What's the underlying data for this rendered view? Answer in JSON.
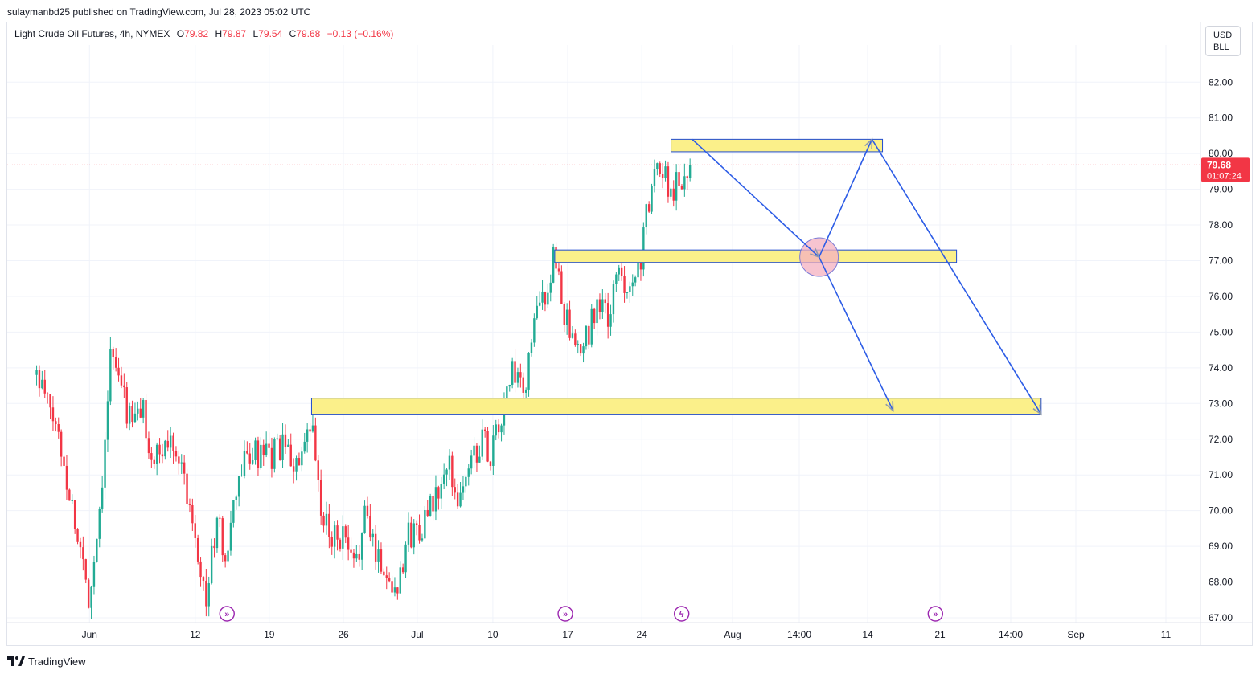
{
  "header": {
    "published": "sulaymanbd25 published on TradingView.com, Jul 28, 2023 05:02 UTC"
  },
  "legend": {
    "title": "Light Crude Oil Futures, 4h, NYMEX",
    "o_label": "O",
    "o_value": "79.82",
    "h_label": "H",
    "h_value": "79.87",
    "l_label": "L",
    "l_value": "79.54",
    "c_label": "C",
    "c_value": "79.68",
    "change": "−0.13 (−0.16%)"
  },
  "currency": {
    "line1": "USD",
    "line2": "BLL"
  },
  "price_tag": {
    "price": "79.68",
    "countdown": "01:07:24"
  },
  "footer": {
    "brand": "TradingView"
  },
  "colors": {
    "up": "#22ab94",
    "down": "#f23645",
    "zone_fill": "#fbf08a",
    "zone_border": "#1e4ad1",
    "arrow": "#2c5ce6",
    "circle": "#f4b0c0",
    "event_icon": "#9c27b0",
    "grid": "#f0f3fa"
  },
  "chart_data": {
    "type": "candlestick",
    "symbol": "Light Crude Oil Futures",
    "timeframe": "4h",
    "exchange": "NYMEX",
    "last_price": 79.68,
    "yaxis": {
      "ticks": [
        "67.00",
        "68.00",
        "69.00",
        "70.00",
        "71.00",
        "72.00",
        "73.00",
        "74.00",
        "75.00",
        "76.00",
        "77.00",
        "78.00",
        "79.00",
        "80.00",
        "81.00",
        "82.00"
      ],
      "ylim": [
        66.8,
        83.0
      ]
    },
    "xaxis": {
      "ticks": [
        "Jun",
        "12",
        "19",
        "26",
        "Jul",
        "10",
        "17",
        "24",
        "Aug",
        "14:00",
        "14",
        "21",
        "14:00",
        "Sep",
        "11"
      ]
    },
    "price_path": [
      [
        "May 27",
        73.8
      ],
      [
        "May 29",
        72.2
      ],
      [
        "May 31",
        69.1
      ],
      [
        "Jun 1",
        67.5
      ],
      [
        "Jun 2",
        70.2
      ],
      [
        "Jun 3",
        74.4
      ],
      [
        "Jun 5",
        72.4
      ],
      [
        "Jun 6",
        72.9
      ],
      [
        "Jun 7",
        71.3
      ],
      [
        "Jun 9",
        72.1
      ],
      [
        "Jun 11",
        69.5
      ],
      [
        "Jun 12",
        67.4
      ],
      [
        "Jun 13",
        69.7
      ],
      [
        "Jun 14",
        68.6
      ],
      [
        "Jun 15",
        70.8
      ],
      [
        "Jun 16",
        71.6
      ],
      [
        "Jun 18",
        71.4
      ],
      [
        "Jun 19",
        71.8
      ],
      [
        "Jun 21",
        71.2
      ],
      [
        "Jun 22",
        72.4
      ],
      [
        "Jun 23",
        69.6
      ],
      [
        "Jun 25",
        69.2
      ],
      [
        "Jun 26",
        68.3
      ],
      [
        "Jun 27",
        69.8
      ],
      [
        "Jun 29",
        68.2
      ],
      [
        "Jun 30",
        67.8
      ],
      [
        "Jul 1",
        69.2
      ],
      [
        "Jul 3",
        69.8
      ],
      [
        "Jul 4",
        70.5
      ],
      [
        "Jul 5",
        71.2
      ],
      [
        "Jul 6",
        70.3
      ],
      [
        "Jul 7",
        71.3
      ],
      [
        "Jul 8",
        72.0
      ],
      [
        "Jul 9",
        71.6
      ],
      [
        "Jul 10",
        72.6
      ],
      [
        "Jul 11",
        73.9
      ],
      [
        "Jul 12",
        73.1
      ],
      [
        "Jul 13",
        75.2
      ],
      [
        "Jul 14",
        76.0
      ],
      [
        "Jul 15",
        77.1
      ],
      [
        "Jul 16",
        75.4
      ],
      [
        "Jul 17",
        74.2
      ],
      [
        "Jul 18",
        74.8
      ],
      [
        "Jul 19",
        75.9
      ],
      [
        "Jul 20",
        75.3
      ],
      [
        "Jul 21",
        76.6
      ],
      [
        "Jul 22",
        76.4
      ],
      [
        "Jul 23",
        76.9
      ],
      [
        "Jul 24",
        78.8
      ],
      [
        "Jul 25",
        79.8
      ],
      [
        "Jul 26",
        78.9
      ],
      [
        "Jul 27",
        79.4
      ],
      [
        "Jul 28",
        79.68
      ]
    ],
    "zones": [
      {
        "from": "Jul 26",
        "to": "Aug 15",
        "top": 80.4,
        "bottom": 80.05
      },
      {
        "from": "Jul 15",
        "to": "Aug 22",
        "top": 77.3,
        "bottom": 76.95
      },
      {
        "from": "Jun 22",
        "to": "Aug 30",
        "top": 73.15,
        "bottom": 72.7
      }
    ],
    "projection_arrows": [
      {
        "from": [
          "Jul 28",
          80.4
        ],
        "to": [
          "Aug 9",
          77.1
        ]
      },
      {
        "from": [
          "Aug 9",
          77.1
        ],
        "to": [
          "Aug 14",
          80.4
        ]
      },
      {
        "from": [
          "Aug 9",
          77.1
        ],
        "to": [
          "Aug 16",
          72.8
        ]
      },
      {
        "from": [
          "Aug 14",
          80.4
        ],
        "to": [
          "Aug 30",
          72.7
        ]
      }
    ],
    "event_markers": [
      "Jun 14",
      "Jul 16",
      "Jul 27",
      "Aug 20"
    ],
    "grid": true
  }
}
